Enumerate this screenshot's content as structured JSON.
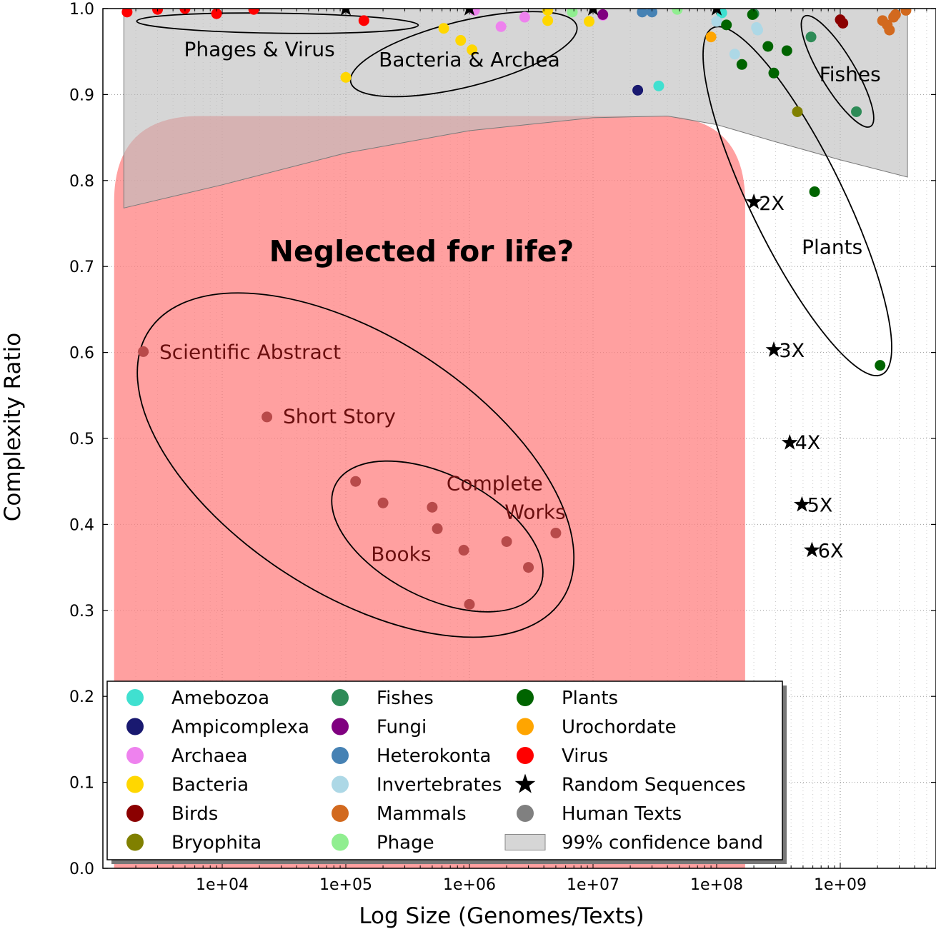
{
  "chart_data": {
    "type": "scatter",
    "xlabel": "Log Size (Genomes/Texts)",
    "ylabel": "Complexity Ratio",
    "xscale": "log",
    "xlim": [
      1200,
      5000000000
    ],
    "ylim": [
      0.0,
      1.0
    ],
    "grid": true,
    "legend_position": "bottom-left",
    "x_ticks": [
      {
        "value": 10000,
        "label": "1e+04"
      },
      {
        "value": 100000,
        "label": "1e+05"
      },
      {
        "value": 1000000,
        "label": "1e+06"
      },
      {
        "value": 10000000,
        "label": "1e+07"
      },
      {
        "value": 100000000,
        "label": "1e+08"
      },
      {
        "value": 1000000000,
        "label": "1e+09"
      }
    ],
    "y_ticks": [
      {
        "value": 0.0,
        "label": "0.0"
      },
      {
        "value": 0.1,
        "label": "0.1"
      },
      {
        "value": 0.2,
        "label": "0.2"
      },
      {
        "value": 0.3,
        "label": "0.3"
      },
      {
        "value": 0.4,
        "label": "0.4"
      },
      {
        "value": 0.5,
        "label": "0.5"
      },
      {
        "value": 0.6,
        "label": "0.6"
      },
      {
        "value": 0.7,
        "label": "0.7"
      },
      {
        "value": 0.8,
        "label": "0.8"
      },
      {
        "value": 0.9,
        "label": "0.9"
      },
      {
        "value": 1.0,
        "label": "1.0"
      }
    ],
    "confidence_band": {
      "name": "99% confidence band",
      "color": "#bdbdbd",
      "upper": [
        [
          1600,
          1.0
        ],
        [
          3500000000,
          1.0
        ]
      ],
      "lower": [
        [
          1600,
          0.768
        ],
        [
          10000,
          0.795
        ],
        [
          100000,
          0.832
        ],
        [
          1000000,
          0.858
        ],
        [
          10000000,
          0.873
        ],
        [
          40000000,
          0.875
        ],
        [
          100000000,
          0.865
        ],
        [
          300000000,
          0.845
        ],
        [
          1000000000,
          0.824
        ],
        [
          3500000000,
          0.804
        ]
      ]
    },
    "neglected_region": {
      "label": "Neglected for life?",
      "color": "#ff7b7b",
      "x_range": [
        1300,
        170000000
      ],
      "y_range": [
        0.0,
        0.875
      ]
    },
    "region_labels": [
      {
        "text": "Phages & Virus",
        "x": 20000,
        "y": 0.953
      },
      {
        "text": "Bacteria & Archea",
        "x": 1000000,
        "y": 0.941
      },
      {
        "text": "Fishes",
        "x": 1200000000,
        "y": 0.924
      },
      {
        "text": "Plants",
        "x": 860000000,
        "y": 0.723
      }
    ],
    "series": [
      {
        "name": "Amebozoa",
        "color": "#40e0d0",
        "marker": "circle",
        "points": [
          [
            34000000,
            0.91
          ],
          [
            110000000,
            0.995
          ]
        ]
      },
      {
        "name": "Ampicomplexa",
        "color": "#191970",
        "marker": "circle",
        "points": [
          [
            23000000,
            0.905
          ]
        ]
      },
      {
        "name": "Archaea",
        "color": "#ee82ee",
        "marker": "circle",
        "points": [
          [
            1100000,
            0.998
          ],
          [
            1800000,
            0.979
          ],
          [
            2800000,
            0.99
          ],
          [
            12000000,
            0.992
          ]
        ]
      },
      {
        "name": "Bacteria",
        "color": "#ffd700",
        "marker": "circle",
        "points": [
          [
            100000,
            0.92
          ],
          [
            620000,
            0.977
          ],
          [
            850000,
            0.963
          ],
          [
            1050000,
            0.952
          ],
          [
            4300000,
            0.986
          ],
          [
            4300000,
            0.998
          ],
          [
            9300000,
            0.985
          ]
        ]
      },
      {
        "name": "Birds",
        "color": "#8b0000",
        "marker": "circle",
        "points": [
          [
            1000000000,
            0.987
          ],
          [
            1050000000,
            0.983
          ]
        ]
      },
      {
        "name": "Bryophita",
        "color": "#808000",
        "marker": "circle",
        "points": [
          [
            450000000,
            0.88
          ]
        ]
      },
      {
        "name": "Fishes",
        "color": "#2e8b57",
        "marker": "circle",
        "points": [
          [
            200000000,
            0.994
          ],
          [
            580000000,
            0.967
          ],
          [
            1350000000,
            0.88
          ]
        ]
      },
      {
        "name": "Fungi",
        "color": "#800080",
        "marker": "circle",
        "points": [
          [
            12000000,
            0.993
          ]
        ]
      },
      {
        "name": "Heterokonta",
        "color": "#4682b4",
        "marker": "circle",
        "points": [
          [
            25000000,
            0.996
          ],
          [
            30000000,
            0.996
          ]
        ]
      },
      {
        "name": "Invertebrates",
        "color": "#add8e6",
        "marker": "circle",
        "points": [
          [
            100000000,
            0.985
          ],
          [
            140000000,
            0.947
          ],
          [
            210000000,
            0.978
          ],
          [
            215000000,
            0.975
          ]
        ]
      },
      {
        "name": "Mammals",
        "color": "#d2691e",
        "marker": "circle",
        "points": [
          [
            2200000000,
            0.986
          ],
          [
            2400000000,
            0.981
          ],
          [
            2500000000,
            0.975
          ],
          [
            2700000000,
            0.99
          ],
          [
            2800000000,
            0.993
          ],
          [
            3400000000,
            0.998
          ]
        ]
      },
      {
        "name": "Phage",
        "color": "#90ee90",
        "marker": "circle",
        "points": [
          [
            6800000,
            0.996
          ],
          [
            48000000,
            0.999
          ]
        ]
      },
      {
        "name": "Plants",
        "color": "#006400",
        "marker": "circle",
        "points": [
          [
            120000000,
            0.981
          ],
          [
            160000000,
            0.935
          ],
          [
            195000000,
            0.993
          ],
          [
            260000000,
            0.956
          ],
          [
            290000000,
            0.925
          ],
          [
            370000000,
            0.951
          ],
          [
            620000000,
            0.787
          ],
          [
            2100000000,
            0.585
          ]
        ]
      },
      {
        "name": "Urochordate",
        "color": "#ffa500",
        "marker": "circle",
        "points": [
          [
            90000000,
            0.967
          ]
        ]
      },
      {
        "name": "Virus",
        "color": "#ff0000",
        "marker": "circle",
        "points": [
          [
            1700,
            0.996
          ],
          [
            3000,
            0.999
          ],
          [
            5000,
            1.0
          ],
          [
            9000,
            0.994
          ],
          [
            18000,
            0.999
          ],
          [
            140000,
            0.986
          ]
        ]
      },
      {
        "name": "Random Sequences",
        "color": "#000000",
        "marker": "star",
        "points": [
          [
            100000,
            1.0
          ],
          [
            1000000,
            1.0
          ],
          [
            10000000,
            1.0
          ],
          [
            100000000,
            1.0
          ],
          [
            200000000,
            0.775
          ],
          [
            290000000,
            0.603
          ],
          [
            390000000,
            0.495
          ],
          [
            490000000,
            0.423
          ],
          [
            590000000,
            0.37
          ]
        ]
      },
      {
        "name": "Human Texts",
        "color": "#b84a4a",
        "marker": "circle",
        "points": [
          [
            2300,
            0.601
          ],
          [
            23000,
            0.525
          ],
          [
            120000,
            0.45
          ],
          [
            200000,
            0.425
          ],
          [
            500000,
            0.42
          ],
          [
            550000,
            0.395
          ],
          [
            900000,
            0.37
          ],
          [
            1000000,
            0.307
          ],
          [
            2000000,
            0.38
          ],
          [
            3000000,
            0.35
          ],
          [
            5000000,
            0.39
          ]
        ]
      }
    ],
    "annotations": [
      {
        "text": "Scientific Abstract",
        "x": 3100,
        "y": 0.601
      },
      {
        "text": "Short Story",
        "x": 31000,
        "y": 0.526
      },
      {
        "text": "Complete",
        "x": 1600000,
        "y": 0.448
      },
      {
        "text": "Works",
        "x": 3400000,
        "y": 0.415
      },
      {
        "text": "Books",
        "x": 280000,
        "y": 0.366
      },
      {
        "text": "2X",
        "x": 220000000,
        "y": 0.774
      },
      {
        "text": "3X",
        "x": 320000000,
        "y": 0.603
      },
      {
        "text": "4X",
        "x": 430000000,
        "y": 0.496
      },
      {
        "text": "5X",
        "x": 540000000,
        "y": 0.423
      },
      {
        "text": "6X",
        "x": 660000000,
        "y": 0.37
      }
    ],
    "ellipses": [
      {
        "name": "phages-virus",
        "cx": 28000,
        "cy": 0.983,
        "rx_px": 197,
        "ry_px": 14,
        "angle": 0.8
      },
      {
        "name": "bacteria-archea",
        "cx": 900000,
        "cy": 0.947,
        "rx_px": 163,
        "ry_px": 46,
        "angle": -14
      },
      {
        "name": "fishes",
        "cx": 950000000,
        "cy": 0.927,
        "rx_px": 90,
        "ry_px": 24,
        "angle": 59
      },
      {
        "name": "plants",
        "cx": 450000000,
        "cy": 0.776,
        "rx_px": 270,
        "ry_px": 65,
        "angle": 64
      },
      {
        "name": "human-texts",
        "cx": 120000,
        "cy": 0.469,
        "rx_px": 345,
        "ry_px": 180,
        "angle": 33
      },
      {
        "name": "books",
        "cx": 550000,
        "cy": 0.386,
        "rx_px": 160,
        "ry_px": 86,
        "angle": 27
      }
    ]
  }
}
